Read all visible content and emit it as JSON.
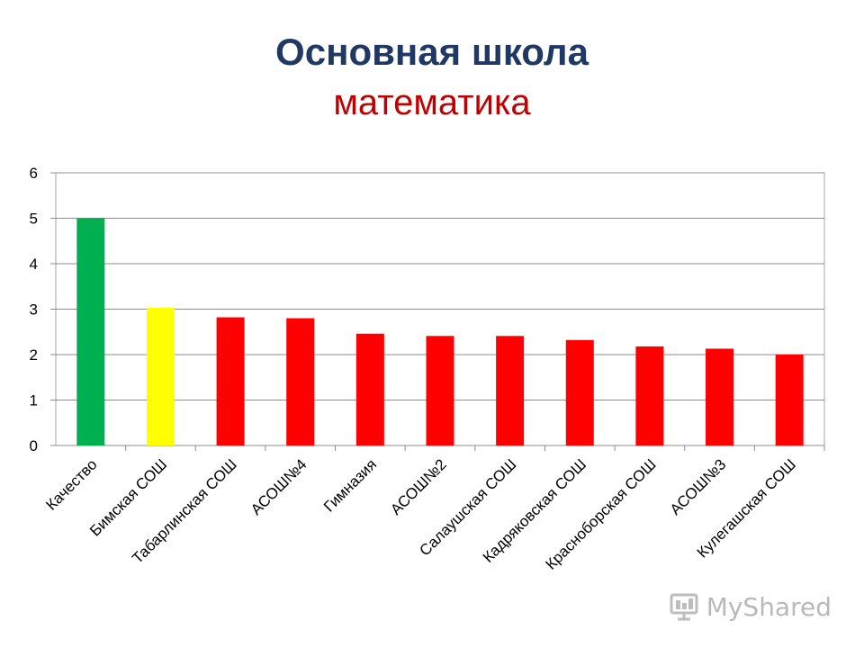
{
  "title": {
    "line1": "Основная школа",
    "line2": "математика"
  },
  "chart_data": {
    "type": "bar",
    "categories": [
      "Качество",
      "Бимская СОШ",
      "Табарлинская СОШ",
      "АСОШ№4",
      "Гимназия",
      "АСОШ№2",
      "Салаушская СОШ",
      "Кадряковская СОШ",
      "Красноборская СОШ",
      "АСОШ№3",
      "Кулегашская СОШ"
    ],
    "values": [
      5.0,
      3.03,
      2.82,
      2.8,
      2.46,
      2.41,
      2.41,
      2.32,
      2.18,
      2.13,
      2.0
    ],
    "bar_colors": [
      "#00b050",
      "#ffff00",
      "#ff0000",
      "#ff0000",
      "#ff0000",
      "#ff0000",
      "#ff0000",
      "#ff0000",
      "#ff0000",
      "#ff0000",
      "#ff0000"
    ],
    "ylim": [
      0,
      6
    ],
    "yticks": [
      0,
      1,
      2,
      3,
      4,
      5,
      6
    ],
    "grid": true,
    "legend": "none"
  },
  "watermark": {
    "text": "MyShared",
    "icon": "projector-screen-icon"
  }
}
